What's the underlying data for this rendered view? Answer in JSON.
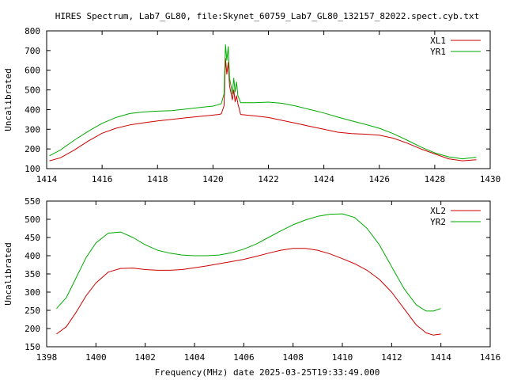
{
  "title": "HIRES Spectrum, Lab7_GL80, file:Skynet_60759_Lab7_GL80_132157_82022.spect.cyb.txt",
  "xlabel": "Frequency(MHz) date 2025-03-25T19:33:49.000",
  "colors": {
    "red": "#cc0000",
    "green": "#00aa00"
  },
  "chart_data": [
    {
      "type": "line",
      "ylabel": "Uncalibrated",
      "xlim": [
        1414,
        1430
      ],
      "ylim": [
        100,
        800
      ],
      "xticks": [
        1414,
        1416,
        1418,
        1420,
        1422,
        1424,
        1426,
        1428,
        1430
      ],
      "yticks": [
        100,
        200,
        300,
        400,
        500,
        600,
        700,
        800
      ],
      "legend_position": "top-right",
      "series": [
        {
          "name": "XL1",
          "color": "#cc0000",
          "x": [
            1414.1,
            1414.5,
            1415.0,
            1415.5,
            1416.0,
            1416.5,
            1417.0,
            1417.5,
            1418.0,
            1418.5,
            1419.0,
            1419.5,
            1420.0,
            1420.2,
            1420.3,
            1420.4,
            1420.45,
            1420.5,
            1420.55,
            1420.6,
            1420.7,
            1420.75,
            1420.8,
            1420.85,
            1420.9,
            1421.0,
            1421.5,
            1422.0,
            1422.5,
            1423.0,
            1423.5,
            1424.0,
            1424.5,
            1425.0,
            1425.5,
            1426.0,
            1426.5,
            1427.0,
            1427.5,
            1428.0,
            1428.5,
            1429.0,
            1429.5
          ],
          "y": [
            140,
            155,
            195,
            240,
            280,
            305,
            322,
            333,
            342,
            350,
            358,
            365,
            372,
            375,
            378,
            420,
            660,
            580,
            640,
            520,
            450,
            500,
            440,
            470,
            430,
            375,
            368,
            360,
            345,
            330,
            315,
            300,
            285,
            278,
            275,
            270,
            255,
            230,
            200,
            175,
            150,
            140,
            145
          ]
        },
        {
          "name": "YR1",
          "color": "#00aa00",
          "x": [
            1414.1,
            1414.5,
            1415.0,
            1415.5,
            1416.0,
            1416.5,
            1417.0,
            1417.5,
            1418.0,
            1418.5,
            1419.0,
            1419.5,
            1420.0,
            1420.2,
            1420.3,
            1420.4,
            1420.45,
            1420.5,
            1420.55,
            1420.6,
            1420.7,
            1420.75,
            1420.8,
            1420.85,
            1420.9,
            1421.0,
            1421.5,
            1422.0,
            1422.5,
            1423.0,
            1423.5,
            1424.0,
            1424.5,
            1425.0,
            1425.5,
            1426.0,
            1426.5,
            1427.0,
            1427.5,
            1428.0,
            1428.5,
            1429.0,
            1429.5
          ],
          "y": [
            165,
            195,
            245,
            290,
            330,
            360,
            380,
            388,
            392,
            395,
            402,
            410,
            418,
            425,
            430,
            480,
            730,
            650,
            720,
            560,
            480,
            560,
            490,
            540,
            470,
            435,
            435,
            438,
            432,
            418,
            400,
            383,
            362,
            343,
            325,
            305,
            278,
            245,
            210,
            180,
            160,
            150,
            158
          ]
        }
      ]
    },
    {
      "type": "line",
      "ylabel": "Uncalibrated",
      "xlim": [
        1398,
        1416
      ],
      "ylim": [
        150,
        550
      ],
      "xticks": [
        1398,
        1400,
        1402,
        1404,
        1406,
        1408,
        1410,
        1412,
        1414,
        1416
      ],
      "yticks": [
        150,
        200,
        250,
        300,
        350,
        400,
        450,
        500,
        550
      ],
      "legend_position": "top-right",
      "series": [
        {
          "name": "XL2",
          "color": "#cc0000",
          "x": [
            1398.4,
            1398.8,
            1399.2,
            1399.6,
            1400.0,
            1400.5,
            1401.0,
            1401.5,
            1402.0,
            1402.5,
            1403.0,
            1403.5,
            1404.0,
            1404.5,
            1405.0,
            1405.5,
            1406.0,
            1406.5,
            1407.0,
            1407.5,
            1408.0,
            1408.5,
            1409.0,
            1409.5,
            1410.0,
            1410.5,
            1411.0,
            1411.5,
            1412.0,
            1412.5,
            1413.0,
            1413.4,
            1413.7,
            1414.0
          ],
          "y": [
            185,
            205,
            245,
            290,
            325,
            355,
            365,
            366,
            362,
            360,
            360,
            362,
            367,
            372,
            378,
            384,
            390,
            398,
            407,
            415,
            420,
            420,
            415,
            405,
            392,
            378,
            360,
            335,
            300,
            255,
            210,
            188,
            182,
            185
          ]
        },
        {
          "name": "YR2",
          "color": "#00aa00",
          "x": [
            1398.4,
            1398.8,
            1399.2,
            1399.6,
            1400.0,
            1400.5,
            1401.0,
            1401.5,
            1402.0,
            1402.5,
            1403.0,
            1403.5,
            1404.0,
            1404.5,
            1405.0,
            1405.5,
            1406.0,
            1406.5,
            1407.0,
            1407.5,
            1408.0,
            1408.5,
            1409.0,
            1409.5,
            1410.0,
            1410.5,
            1411.0,
            1411.5,
            1412.0,
            1412.5,
            1413.0,
            1413.4,
            1413.7,
            1414.0
          ],
          "y": [
            255,
            285,
            340,
            395,
            435,
            462,
            465,
            450,
            430,
            415,
            407,
            402,
            400,
            400,
            402,
            408,
            418,
            432,
            450,
            468,
            485,
            498,
            508,
            514,
            515,
            505,
            475,
            430,
            370,
            310,
            265,
            248,
            248,
            255
          ]
        }
      ]
    }
  ]
}
